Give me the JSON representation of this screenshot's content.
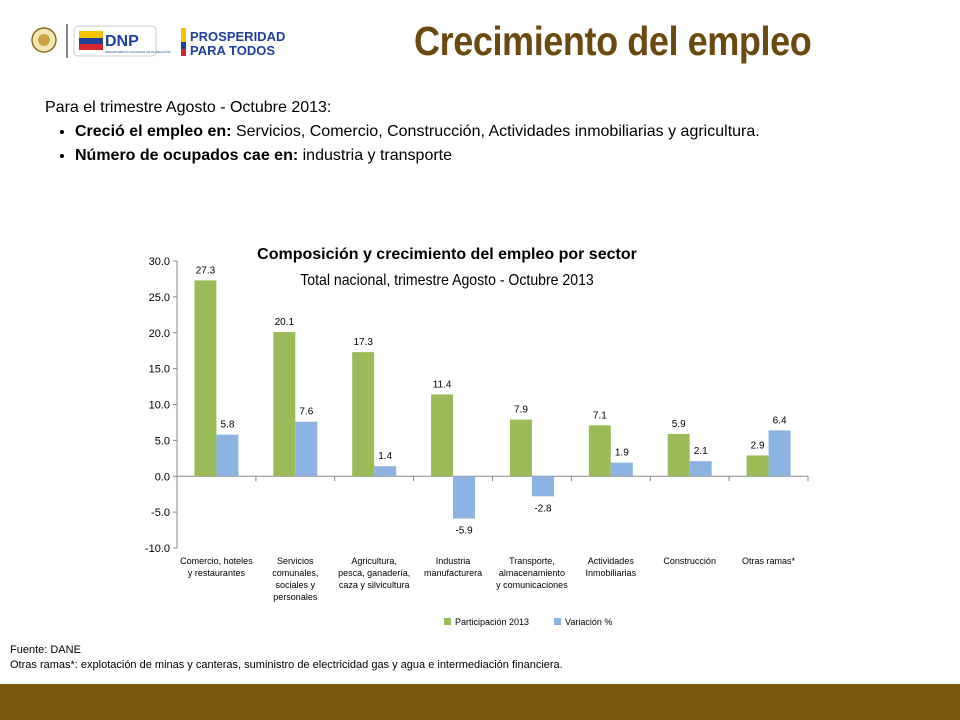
{
  "header": {
    "title": "Crecimiento del empleo",
    "logo_dnp_text": "DNP",
    "logo_dnp_subtext": "DEPARTAMENTO NACIONAL DE PLANEACIÓN",
    "logo_prosperidad_line1": "PROSPERIDAD",
    "logo_prosperidad_line2": "PARA TODOS"
  },
  "intro": {
    "lead": "Para el trimestre Agosto - Octubre 2013:",
    "bullets": [
      {
        "bold": "Creció el empleo en:",
        "text": " Servicios, Comercio, Construcción, Actividades inmobiliarias y agricultura."
      },
      {
        "bold": "Número de ocupados cae en:",
        "text": " industria y transporte"
      }
    ]
  },
  "chart_data": {
    "type": "bar",
    "title": "Composición y crecimiento del empleo por sector",
    "subtitle": "Total nacional, trimestre Agosto - Octubre 2013",
    "categories": [
      [
        "Comercio, hoteles",
        "y restaurantes"
      ],
      [
        "Servicios",
        "comunales,",
        "sociales y",
        "personales"
      ],
      [
        "Agricultura,",
        "pesca, ganadería,",
        "caza y silvicultura"
      ],
      [
        "Industria",
        "manufacturera"
      ],
      [
        "Transporte,",
        "almacenamiento",
        "y comunicaciones"
      ],
      [
        "Actividades",
        "Inmobiliarias"
      ],
      [
        "Construcción"
      ],
      [
        "Otras ramas*"
      ]
    ],
    "series": [
      {
        "name": "Participación 2013",
        "color": "#9bbb59",
        "values": [
          27.3,
          20.1,
          17.3,
          11.4,
          7.9,
          7.1,
          5.9,
          2.9
        ]
      },
      {
        "name": "Variación %",
        "color": "#8db3e2",
        "values": [
          5.8,
          7.6,
          1.4,
          -5.9,
          -2.8,
          1.9,
          2.1,
          6.4
        ]
      }
    ],
    "yticks": [
      "30.0",
      "25.0",
      "20.0",
      "15.0",
      "10.0",
      "5.0",
      "0.0",
      "-5.0",
      "-10.0"
    ],
    "ylim": [
      -10,
      30
    ],
    "legend_position": "bottom",
    "grid": false
  },
  "footer": {
    "source": "Fuente: DANE",
    "note": "Otras ramas*:  explotación de minas y canteras, suministro de electricidad gas y agua e intermediación financiera."
  },
  "colors": {
    "title": "#6b4a12",
    "footer_bar": "#7a5a0e"
  }
}
